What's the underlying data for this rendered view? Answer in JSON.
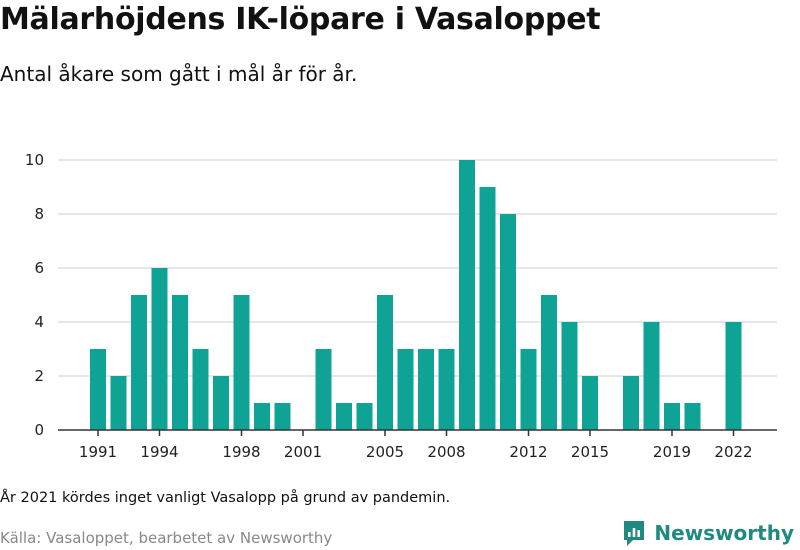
{
  "header": {
    "title": "Mälarhöjdens IK-löpare i Vasaloppet",
    "subtitle": "Antal åkare som gått i mål år för år."
  },
  "footer": {
    "note": "År 2021 kördes inget vanligt Vasalopp på grund av pandemin.",
    "source": "Källa: Vasaloppet, bearbetet av Newsworthy",
    "brand": "Newsworthy"
  },
  "colors": {
    "bar": "#0fa396",
    "brand": "#1e8a80",
    "grid": "#dddddd",
    "axis": "#333333"
  },
  "icons": {
    "brand_logo": "newsworthy-logo-icon"
  },
  "chart_data": {
    "type": "bar",
    "x": [
      1991,
      1992,
      1993,
      1994,
      1995,
      1996,
      1997,
      1998,
      1999,
      2000,
      2001,
      2002,
      2003,
      2004,
      2005,
      2006,
      2007,
      2008,
      2009,
      2010,
      2011,
      2012,
      2013,
      2014,
      2015,
      2016,
      2017,
      2018,
      2019,
      2020,
      2021,
      2022
    ],
    "values": [
      3,
      2,
      5,
      6,
      5,
      3,
      2,
      5,
      1,
      1,
      0,
      3,
      1,
      1,
      5,
      3,
      3,
      3,
      10,
      9,
      8,
      3,
      5,
      4,
      2,
      0,
      2,
      4,
      1,
      1,
      0,
      4
    ],
    "x_tick_labels": [
      "1991",
      "1994",
      "1998",
      "2001",
      "2005",
      "2008",
      "2012",
      "2015",
      "2019",
      "2022"
    ],
    "y_ticks": [
      "0",
      "2",
      "4",
      "6",
      "8",
      "10"
    ],
    "ylim": [
      0,
      10
    ],
    "grid": true,
    "legend": "none"
  }
}
